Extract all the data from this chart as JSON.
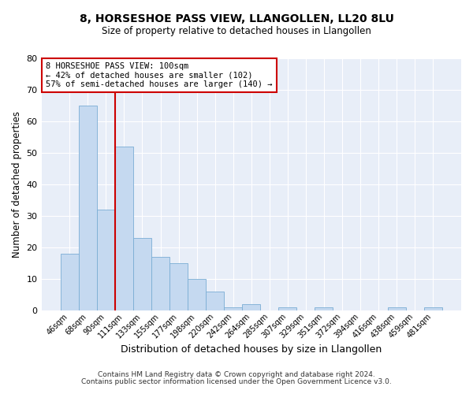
{
  "title": "8, HORSESHOE PASS VIEW, LLANGOLLEN, LL20 8LU",
  "subtitle": "Size of property relative to detached houses in Llangollen",
  "xlabel": "Distribution of detached houses by size in Llangollen",
  "ylabel": "Number of detached properties",
  "bar_labels": [
    "46sqm",
    "68sqm",
    "90sqm",
    "111sqm",
    "133sqm",
    "155sqm",
    "177sqm",
    "198sqm",
    "220sqm",
    "242sqm",
    "264sqm",
    "285sqm",
    "307sqm",
    "329sqm",
    "351sqm",
    "372sqm",
    "394sqm",
    "416sqm",
    "438sqm",
    "459sqm",
    "481sqm"
  ],
  "bar_values": [
    18,
    65,
    32,
    52,
    23,
    17,
    15,
    10,
    6,
    1,
    2,
    0,
    1,
    0,
    1,
    0,
    0,
    0,
    1,
    0,
    1
  ],
  "bar_color": "#c5d9f0",
  "bar_edgecolor": "#7aadd4",
  "vline_color": "#cc0000",
  "annotation_line1": "8 HORSESHOE PASS VIEW: 100sqm",
  "annotation_line2": "← 42% of detached houses are smaller (102)",
  "annotation_line3": "57% of semi-detached houses are larger (140) →",
  "annotation_box_edgecolor": "#cc0000",
  "annotation_box_facecolor": "#ffffff",
  "ylim": [
    0,
    80
  ],
  "yticks": [
    0,
    10,
    20,
    30,
    40,
    50,
    60,
    70,
    80
  ],
  "footer_line1": "Contains HM Land Registry data © Crown copyright and database right 2024.",
  "footer_line2": "Contains public sector information licensed under the Open Government Licence v3.0.",
  "plot_bg_color": "#e8eef8",
  "fig_bg_color": "#ffffff",
  "grid_color": "#ffffff",
  "annotation_fontsize": 7.5,
  "title_fontsize": 10,
  "subtitle_fontsize": 8.5
}
